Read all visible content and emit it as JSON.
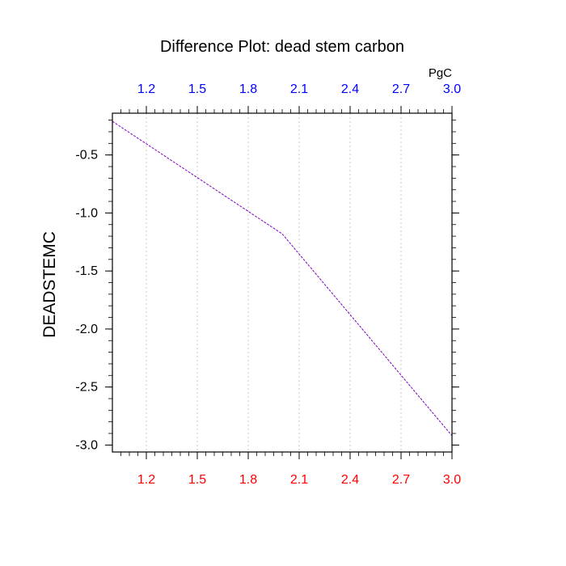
{
  "chart_data": {
    "type": "line",
    "title": "Difference Plot: dead stem carbon",
    "ylabel": "DEADSTEMC",
    "top_axis_unit": "PgC",
    "xlim": [
      1.0,
      3.0
    ],
    "ylim": [
      -3.06,
      -0.14
    ],
    "x_ticks": [
      1.2,
      1.5,
      1.8,
      2.1,
      2.4,
      2.7,
      3.0
    ],
    "x_tick_labels": [
      "1.2",
      "1.5",
      "1.8",
      "2.1",
      "2.4",
      "2.7",
      "3.0"
    ],
    "y_ticks": [
      -0.5,
      -1.0,
      -1.5,
      -2.0,
      -2.5,
      -3.0
    ],
    "y_tick_labels": [
      "-0.5",
      "-1.0",
      "-1.5",
      "-2.0",
      "-2.5",
      "-3.0"
    ],
    "grid": "vertical dotted",
    "series": [
      {
        "x": [
          1.0,
          2.0,
          3.0
        ],
        "y": [
          -0.21,
          -1.18,
          -2.92
        ]
      }
    ]
  },
  "colors": {
    "bottom_tick_labels": "#ff0000",
    "top_tick_labels": "#0000ff",
    "line": "#8000c0",
    "grid": "#c8c8c8",
    "axes": "#000000"
  }
}
